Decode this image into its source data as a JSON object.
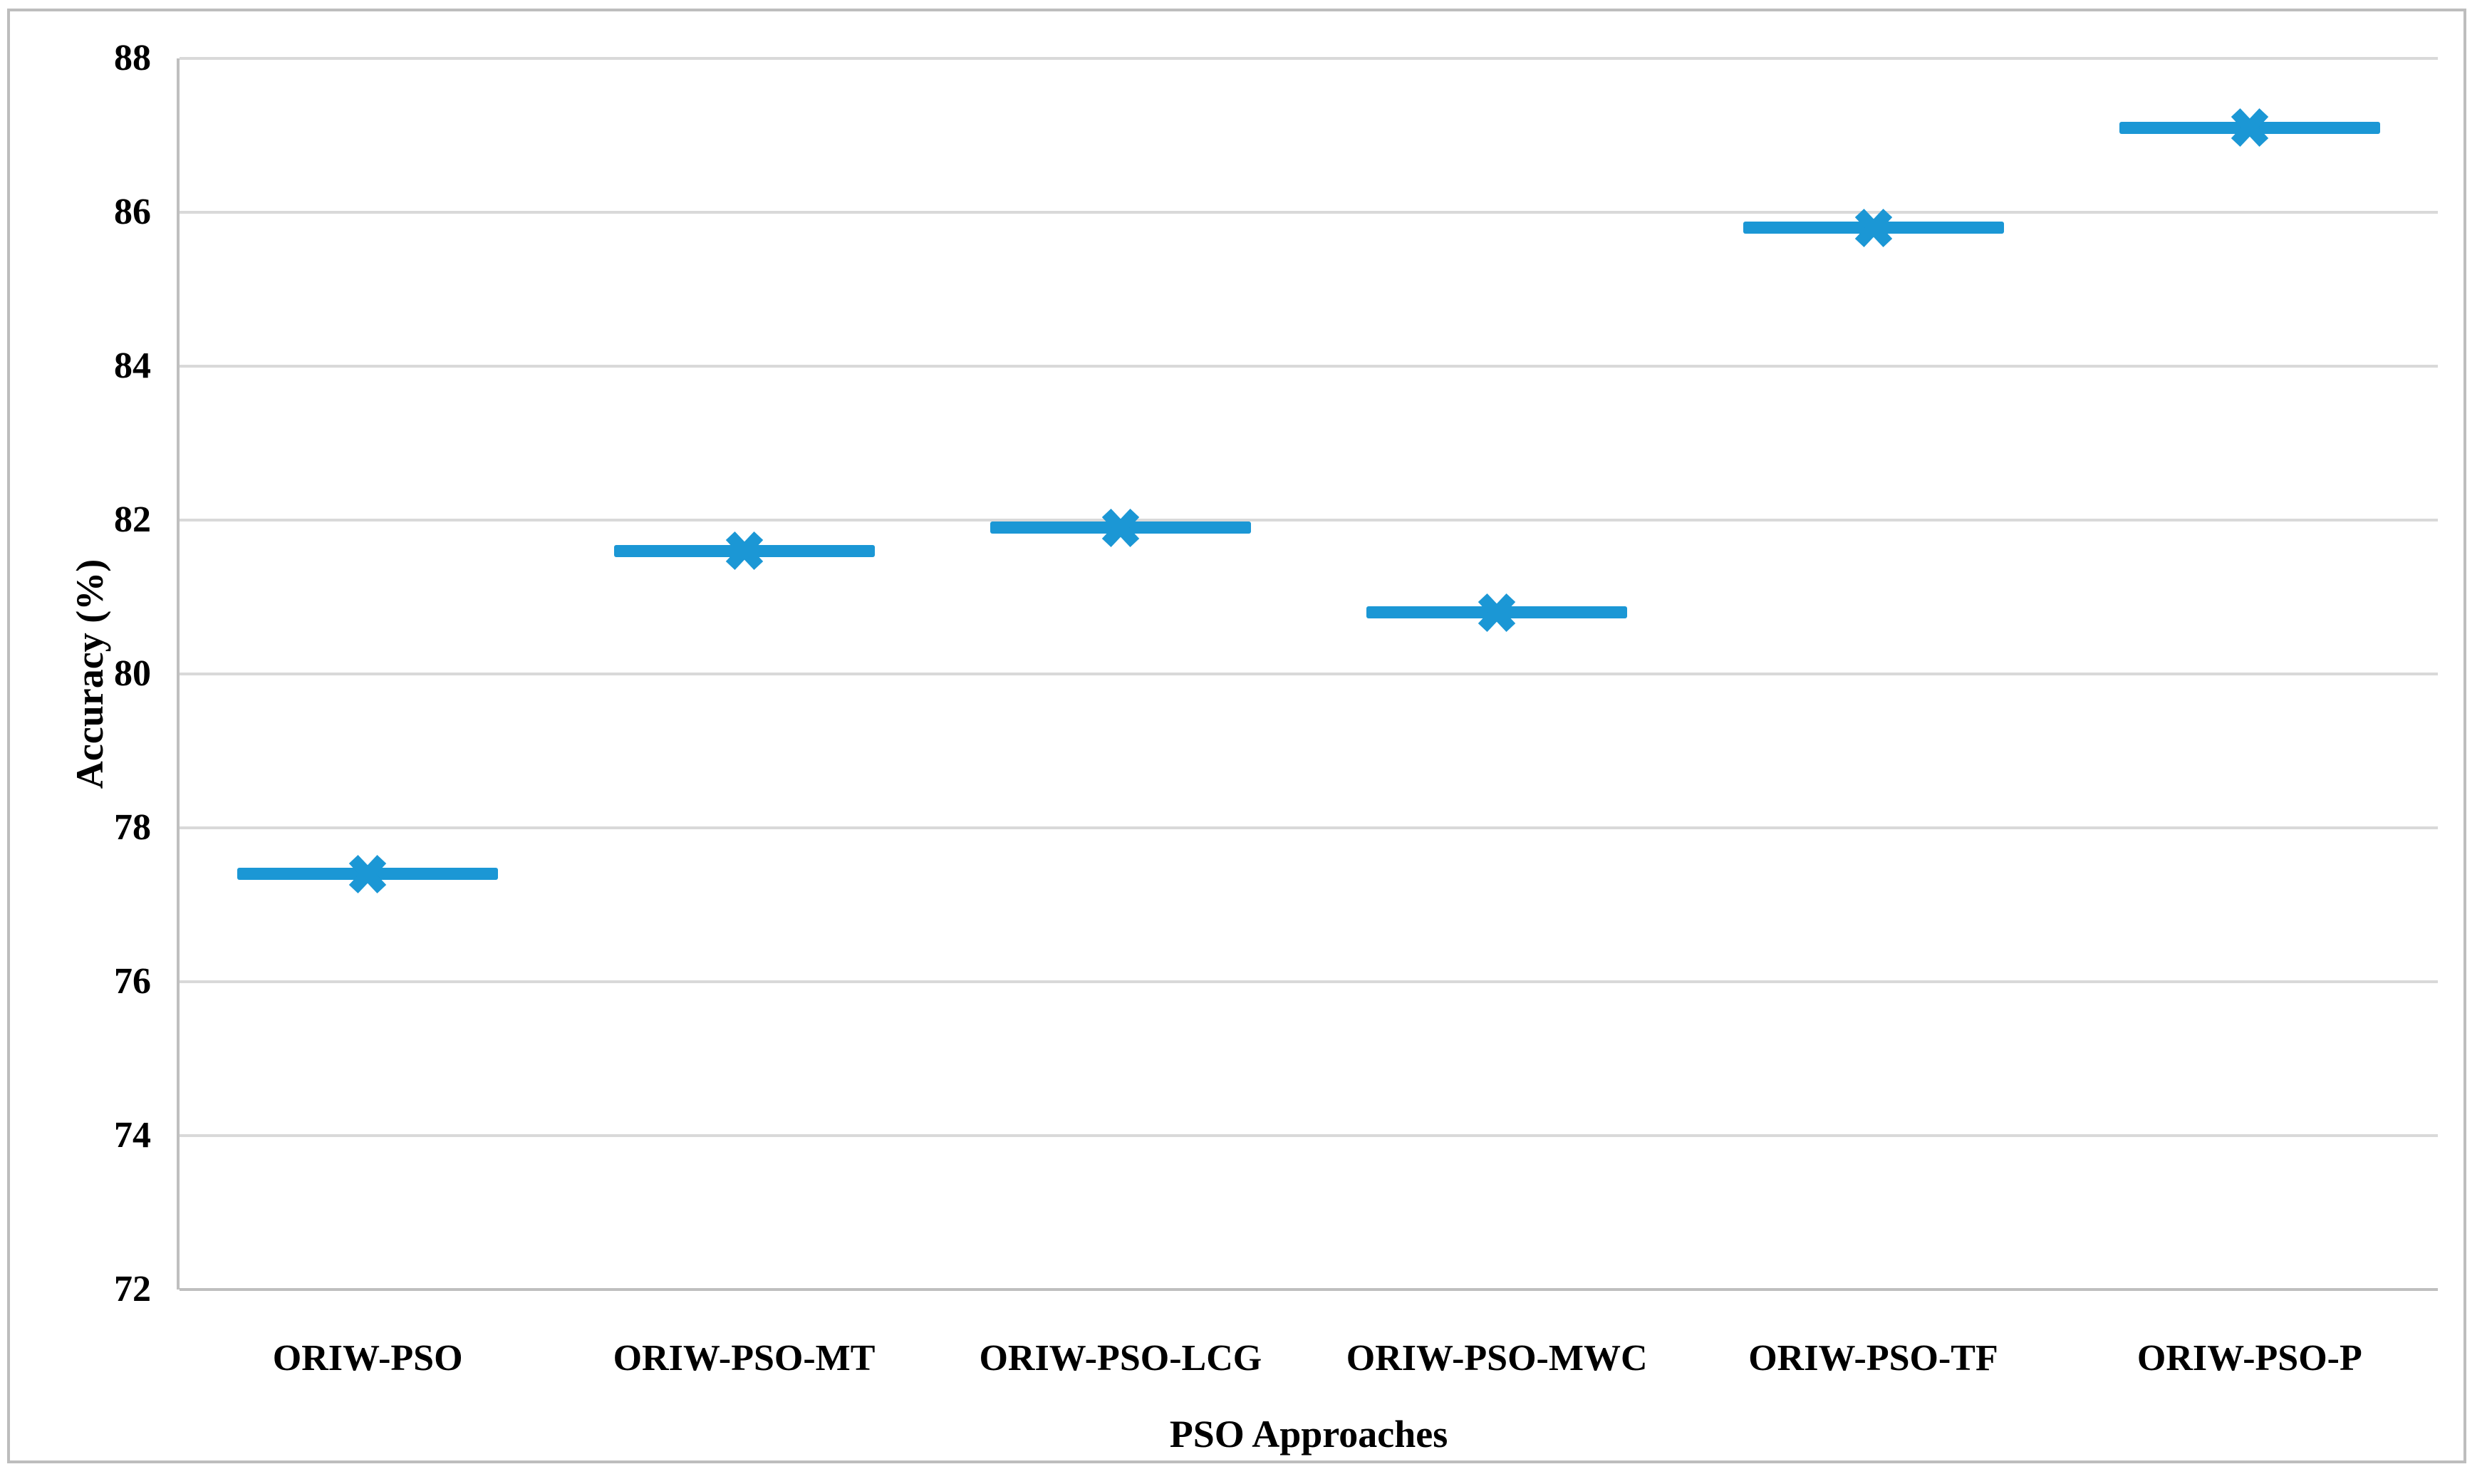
{
  "chart_data": {
    "type": "scatter",
    "subtype": "x-marker-with-horizontal-dash",
    "title": "",
    "xlabel": "PSO Approaches",
    "ylabel": "Accuracy (%)",
    "categories": [
      "ORIW-PSO",
      "ORIW-PSO-MT",
      "ORIW-PSO-LCG",
      "ORIW-PSO-MWC",
      "ORIW-PSO-TF",
      "ORIW-PSO-P"
    ],
    "values": [
      77.4,
      81.6,
      81.9,
      80.8,
      85.8,
      87.1
    ],
    "ylim": [
      72,
      88
    ],
    "yticks": [
      72,
      74,
      76,
      78,
      80,
      82,
      84,
      86,
      88
    ],
    "grid": "horizontal-on",
    "legend": "none",
    "series_color": "#1b97d5",
    "gridline_color": "#d9d9d9",
    "axis_color": "#bfbfbf",
    "frame_border_color": "#bdbdbd",
    "text_color": "#000000"
  }
}
